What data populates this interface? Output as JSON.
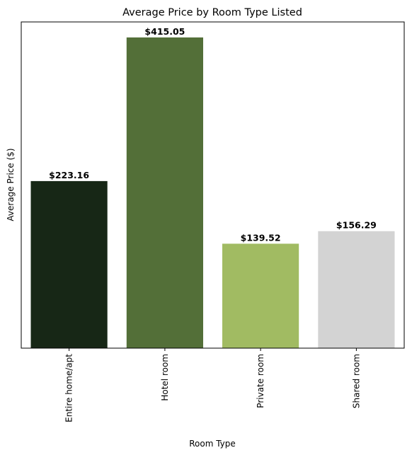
{
  "chart_data": {
    "type": "bar",
    "title": "Average Price by Room Type Listed",
    "xlabel": "Room Type",
    "ylabel": "Average Price ($)",
    "categories": [
      "Entire home/apt",
      "Hotel room",
      "Private room",
      "Shared room"
    ],
    "values": [
      223.16,
      415.05,
      139.52,
      156.29
    ],
    "data_labels": [
      "$223.16",
      "$415.05",
      "$139.52",
      "$156.29"
    ],
    "colors": [
      "#172716",
      "#536f38",
      "#a1bb62",
      "#d3d3d3"
    ],
    "ylim": [
      0,
      435.8
    ],
    "grid": false,
    "legend": "none",
    "y_ticks_shown": false
  }
}
